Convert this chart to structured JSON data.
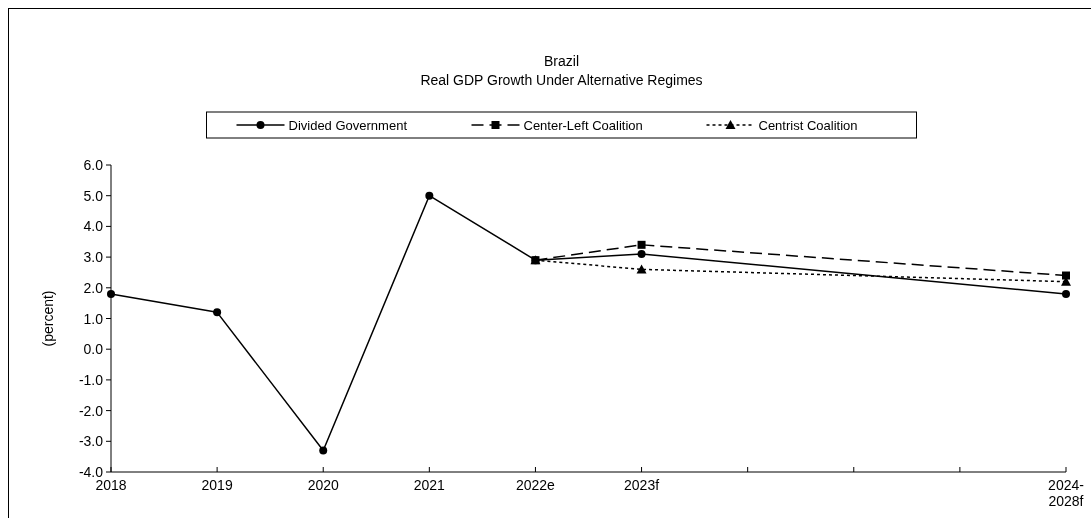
{
  "chart_data": {
    "type": "line",
    "title": "Brazil",
    "subtitle": "Real GDP Growth Under Alternative Regimes",
    "ylabel": "(percent)",
    "categories": [
      "2018",
      "2019",
      "2020",
      "2021",
      "2022e",
      "2023f",
      null,
      null,
      null,
      "2024-\n2028f"
    ],
    "ylim": [
      -4,
      6
    ],
    "yticks": [
      {
        "value": -4,
        "label": "-4.0"
      },
      {
        "value": -3,
        "label": "-3.0"
      },
      {
        "value": -2,
        "label": "-2.0"
      },
      {
        "value": -1,
        "label": "-1.0"
      },
      {
        "value": 0,
        "label": "0.0"
      },
      {
        "value": 1,
        "label": "1.0"
      },
      {
        "value": 2,
        "label": "2.0"
      },
      {
        "value": 3,
        "label": "3.0"
      },
      {
        "value": 4,
        "label": "4.0"
      },
      {
        "value": 5,
        "label": "5.0"
      },
      {
        "value": 6,
        "label": "6.0"
      }
    ],
    "series": [
      {
        "name": "Divided Government",
        "color": "#000000",
        "marker": "circle",
        "line_style": "solid",
        "values": [
          1.8,
          1.2,
          -3.3,
          5.0,
          2.9,
          3.1,
          null,
          null,
          null,
          1.8
        ]
      },
      {
        "name": "Center-Left Coalition",
        "color": "#000000",
        "marker": "square",
        "line_style": "dashed",
        "values": [
          null,
          null,
          null,
          null,
          2.9,
          3.4,
          null,
          null,
          null,
          2.4
        ]
      },
      {
        "name": "Centrist Coalition",
        "color": "#000000",
        "marker": "triangle",
        "line_style": "dotted",
        "values": [
          null,
          null,
          null,
          null,
          2.9,
          2.6,
          null,
          null,
          null,
          2.2
        ]
      }
    ],
    "legend": "top",
    "grid": false
  }
}
